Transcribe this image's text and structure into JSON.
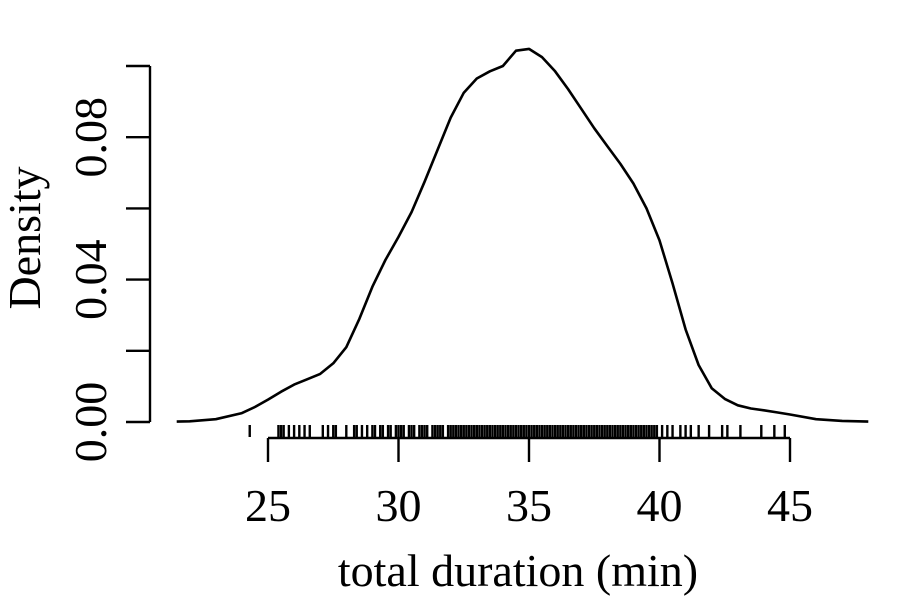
{
  "chart_data": {
    "type": "line",
    "xlabel": "total duration (min)",
    "ylabel": "Density",
    "xlim": [
      21.5,
      48
    ],
    "ylim": [
      0,
      0.1
    ],
    "x_ticks": [
      25,
      30,
      35,
      40,
      45
    ],
    "x_tick_labels": [
      "25",
      "30",
      "35",
      "40",
      "45"
    ],
    "y_ticks": [
      0,
      0.02,
      0.04,
      0.06,
      0.08,
      0.1
    ],
    "y_tick_labels": [
      "0.00",
      "0.04",
      "0.08"
    ],
    "y_labeled_ticks": [
      0,
      0.04,
      0.08
    ],
    "grid": false,
    "series": [
      {
        "x": [
          21.5,
          22,
          23,
          24,
          24.5,
          25,
          25.5,
          26,
          26.5,
          27,
          27.5,
          28,
          28.5,
          29,
          29.5,
          30,
          30.5,
          31,
          31.5,
          32,
          32.5,
          33,
          33.5,
          34,
          34.5,
          35,
          35.5,
          36,
          36.5,
          37,
          37.5,
          38,
          38.5,
          39,
          39.5,
          40,
          40.5,
          41,
          41.5,
          42,
          42.5,
          43,
          43.5,
          44,
          44.5,
          45,
          46,
          47,
          48
        ],
        "y": [
          0.0001,
          0.0002,
          0.0008,
          0.0025,
          0.0042,
          0.0063,
          0.0085,
          0.0105,
          0.012,
          0.0135,
          0.0165,
          0.021,
          0.029,
          0.038,
          0.0455,
          0.052,
          0.059,
          0.0675,
          0.0765,
          0.0855,
          0.0925,
          0.0965,
          0.0985,
          0.1,
          0.1043,
          0.1048,
          0.1025,
          0.0985,
          0.0935,
          0.088,
          0.0825,
          0.0775,
          0.0725,
          0.067,
          0.06,
          0.051,
          0.039,
          0.026,
          0.016,
          0.0095,
          0.0065,
          0.0047,
          0.0038,
          0.0033,
          0.0027,
          0.0021,
          0.0008,
          0.0003,
          0.0001
        ]
      }
    ],
    "rug": [
      24.3,
      25.4,
      25.5,
      25.6,
      25.8,
      26.0,
      26.2,
      26.4,
      26.6,
      27.1,
      27.3,
      27.5,
      27.6,
      28.0,
      28.3,
      28.4,
      28.6,
      28.8,
      29.0,
      29.1,
      29.3,
      29.4,
      29.6,
      29.7,
      29.9,
      30.0,
      30.1,
      30.2,
      30.4,
      30.5,
      30.6,
      30.8,
      30.9,
      31.0,
      31.1,
      31.3,
      31.4,
      31.5,
      31.6,
      31.7,
      31.9,
      32.0,
      32.1,
      32.2,
      32.3,
      32.4,
      32.5,
      32.6,
      32.7,
      32.8,
      32.9,
      33.0,
      33.1,
      33.2,
      33.3,
      33.4,
      33.5,
      33.6,
      33.7,
      33.8,
      33.9,
      34.0,
      34.1,
      34.2,
      34.3,
      34.4,
      34.5,
      34.6,
      34.7,
      34.8,
      34.9,
      35.0,
      35.1,
      35.2,
      35.3,
      35.4,
      35.5,
      35.6,
      35.7,
      35.8,
      35.9,
      36.0,
      36.1,
      36.2,
      36.3,
      36.4,
      36.5,
      36.6,
      36.7,
      36.8,
      36.9,
      37.0,
      37.1,
      37.2,
      37.3,
      37.4,
      37.5,
      37.6,
      37.7,
      37.8,
      37.9,
      38.0,
      38.1,
      38.2,
      38.3,
      38.4,
      38.5,
      38.6,
      38.7,
      38.8,
      38.9,
      39.0,
      39.1,
      39.2,
      39.3,
      39.4,
      39.5,
      39.6,
      39.7,
      39.8,
      39.9,
      40.1,
      40.3,
      40.5,
      40.8,
      41.0,
      41.2,
      41.5,
      41.9,
      42.4,
      42.6,
      43.1,
      43.9,
      44.4,
      44.8
    ]
  }
}
